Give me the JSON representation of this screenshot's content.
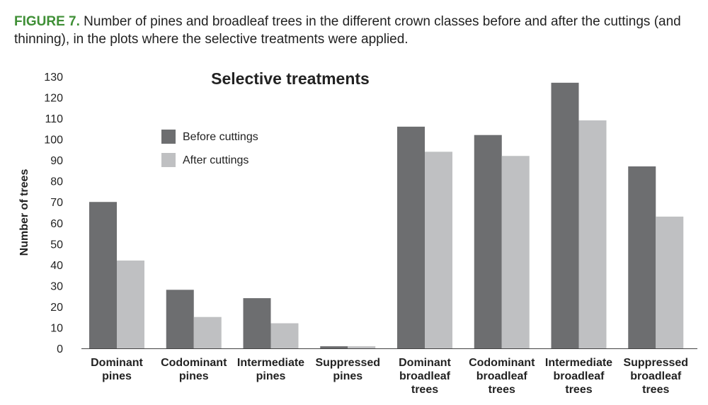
{
  "caption": {
    "label": "FIGURE 7.",
    "text": " Number of pines and broadleaf trees in the different crown classes before and after the cuttings (and thinning), in the plots where the selective treatments were applied."
  },
  "chart_data": {
    "type": "bar",
    "title": "Selective treatments",
    "xlabel": "",
    "ylabel": "Number of trees",
    "ylim": [
      0,
      130
    ],
    "yticks": [
      0,
      10,
      20,
      30,
      40,
      50,
      60,
      70,
      80,
      90,
      100,
      110,
      120,
      130
    ],
    "grid": false,
    "legend_position": "top-left",
    "categories": [
      [
        "Dominant",
        "pines"
      ],
      [
        "Codominant",
        "pines"
      ],
      [
        "Intermediate",
        "pines"
      ],
      [
        "Suppressed",
        "pines"
      ],
      [
        "Dominant",
        "broadleaf",
        "trees"
      ],
      [
        "Codominant",
        "broadleaf",
        "trees"
      ],
      [
        "Intermediate",
        "broadleaf",
        "trees"
      ],
      [
        "Suppressed",
        "broadleaf",
        "trees"
      ]
    ],
    "series": [
      {
        "name": "Before cuttings",
        "color": "#6d6e70",
        "values": [
          70,
          28,
          24,
          1,
          106,
          102,
          127,
          87
        ]
      },
      {
        "name": "After cuttings",
        "color": "#bfc0c2",
        "values": [
          42,
          15,
          12,
          1,
          94,
          92,
          109,
          63
        ]
      }
    ]
  }
}
